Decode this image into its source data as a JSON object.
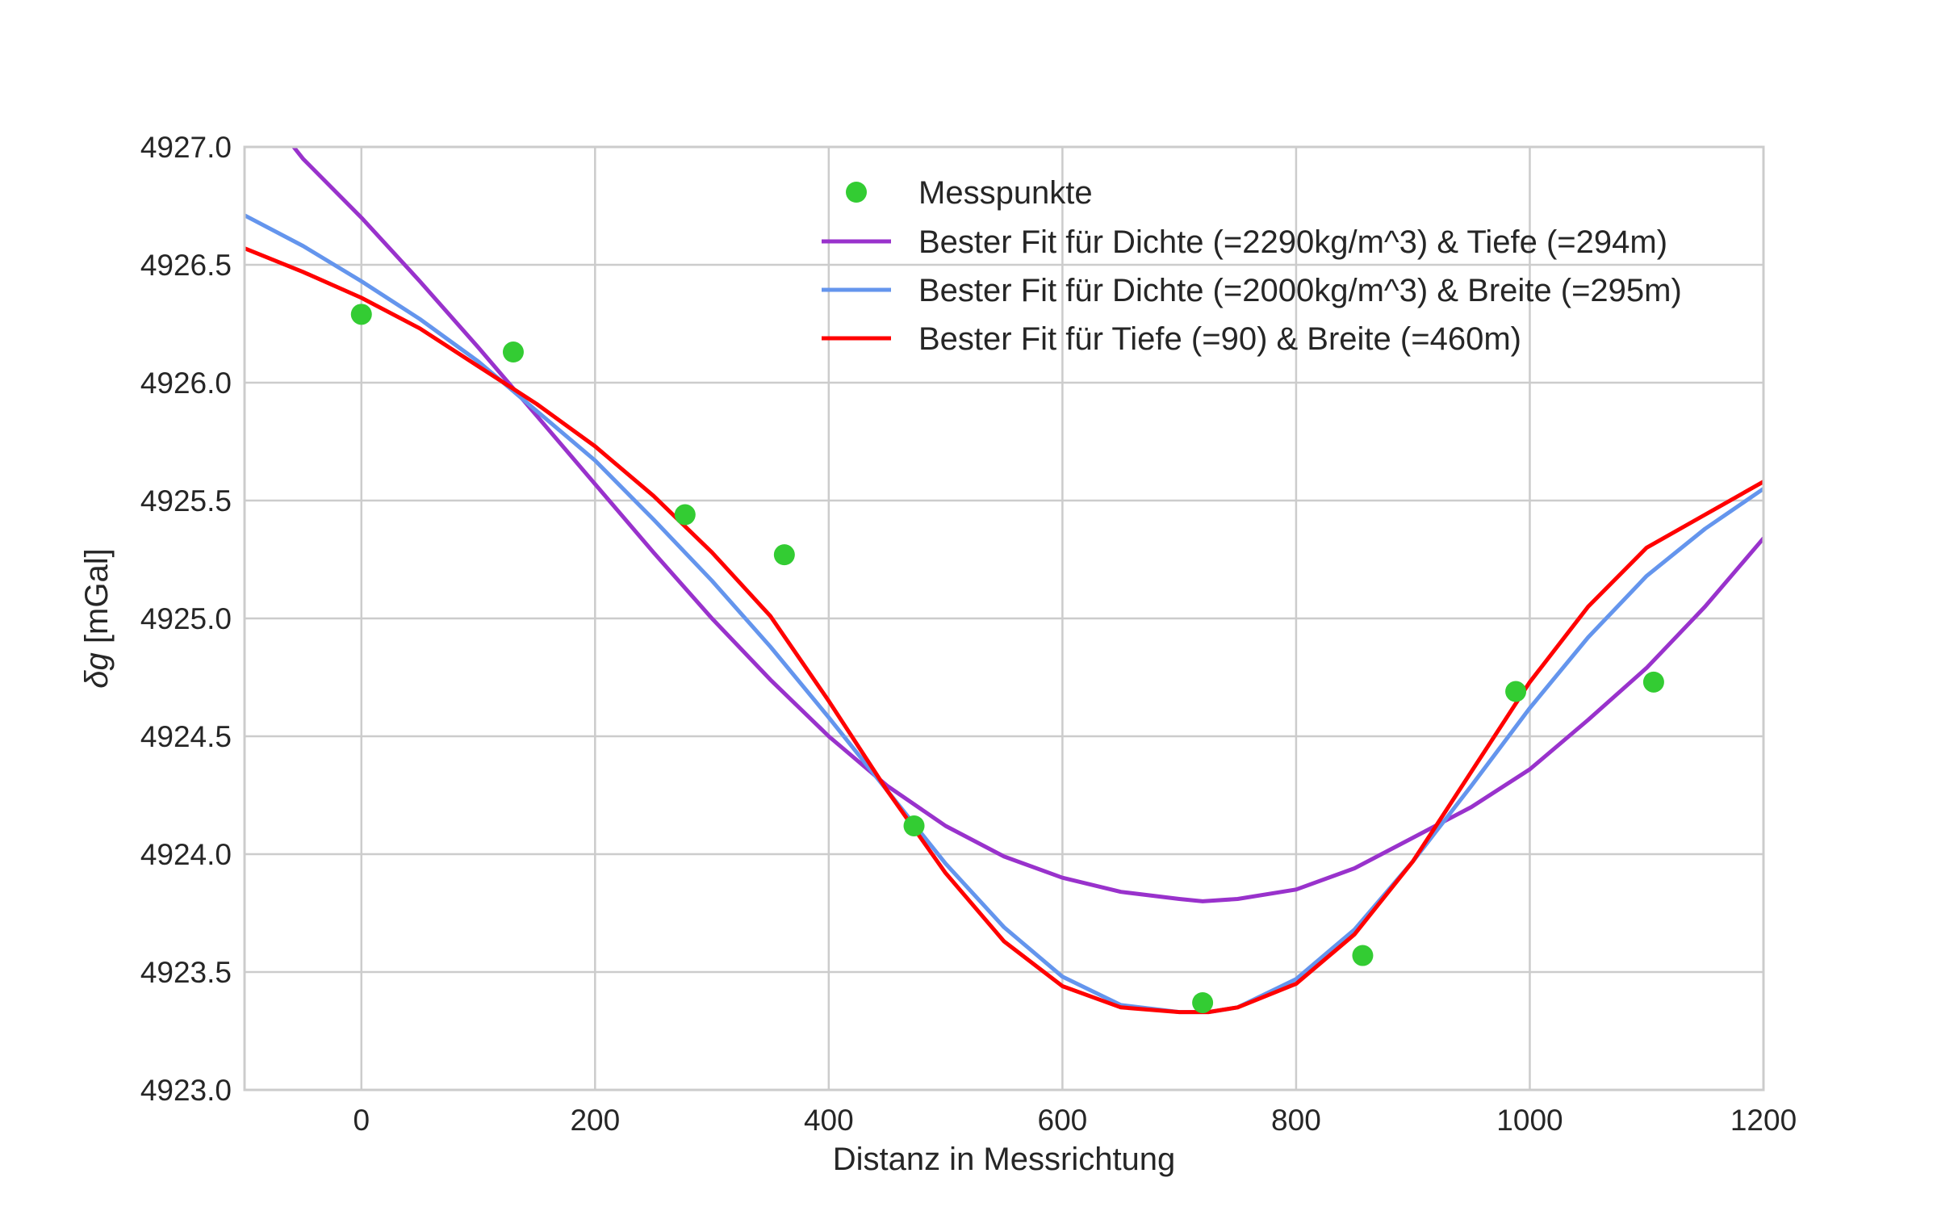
{
  "chart_data": {
    "type": "line",
    "xlabel": "Distanz in Messrichtung",
    "ylabel_italic": "δg",
    "ylabel_unit": " [mGal]",
    "xlim": [
      -100,
      1200
    ],
    "ylim": [
      4923.0,
      4927.0
    ],
    "xticks": [
      0,
      200,
      400,
      600,
      800,
      1000,
      1200
    ],
    "yticks": [
      4923.0,
      4923.5,
      4924.0,
      4924.5,
      4925.0,
      4925.5,
      4926.0,
      4926.5,
      4927.0
    ],
    "grid": true,
    "legend_position": "top-center",
    "points": {
      "name": "Messpunkte",
      "color": "#33cc33",
      "x": [
        0,
        130,
        277,
        362,
        473,
        720,
        857,
        988,
        1106
      ],
      "y": [
        4926.29,
        4926.13,
        4925.44,
        4925.27,
        4924.12,
        4923.37,
        4923.57,
        4924.69,
        4924.73
      ]
    },
    "series": [
      {
        "name": "Bester Fit für Dichte (=2290kg/m^3) & Tiefe (=294m)",
        "color": "#9932cc",
        "x": [
          -58,
          -50,
          0,
          50,
          100,
          150,
          200,
          250,
          300,
          350,
          400,
          450,
          500,
          550,
          600,
          650,
          700,
          720,
          750,
          800,
          850,
          900,
          950,
          1000,
          1050,
          1100,
          1150,
          1200
        ],
        "y": [
          4927.0,
          4926.95,
          4926.7,
          4926.43,
          4926.15,
          4925.86,
          4925.57,
          4925.28,
          4925.0,
          4924.74,
          4924.5,
          4924.29,
          4924.12,
          4923.99,
          4923.9,
          4923.84,
          4923.81,
          4923.8,
          4923.81,
          4923.85,
          4923.94,
          4924.07,
          4924.2,
          4924.36,
          4924.57,
          4924.79,
          4925.05,
          4925.34
        ]
      },
      {
        "name": "Bester Fit für Dichte (=2000kg/m^3) & Breite (=295m)",
        "color": "#6495ed",
        "x": [
          -100,
          -50,
          0,
          50,
          100,
          150,
          200,
          250,
          300,
          350,
          400,
          450,
          500,
          550,
          600,
          650,
          700,
          725,
          750,
          800,
          850,
          900,
          950,
          1000,
          1050,
          1100,
          1150,
          1200
        ],
        "y": [
          4926.71,
          4926.58,
          4926.43,
          4926.27,
          4926.09,
          4925.88,
          4925.67,
          4925.42,
          4925.16,
          4924.88,
          4924.58,
          4924.27,
          4923.96,
          4923.69,
          4923.48,
          4923.36,
          4923.33,
          4923.33,
          4923.35,
          4923.47,
          4923.68,
          4923.97,
          4924.29,
          4924.62,
          4924.92,
          4925.18,
          4925.38,
          4925.55
        ]
      },
      {
        "name": "Bester Fit für Tiefe (=90) & Breite (=460m)",
        "color": "#ff0000",
        "x": [
          -100,
          -50,
          0,
          50,
          100,
          150,
          200,
          250,
          300,
          350,
          400,
          450,
          500,
          550,
          600,
          650,
          700,
          725,
          750,
          800,
          850,
          900,
          950,
          1000,
          1050,
          1100,
          1150,
          1200
        ],
        "y": [
          4926.57,
          4926.47,
          4926.36,
          4926.23,
          4926.07,
          4925.91,
          4925.73,
          4925.52,
          4925.28,
          4925.01,
          4924.65,
          4924.27,
          4923.92,
          4923.63,
          4923.44,
          4923.35,
          4923.33,
          4923.33,
          4923.35,
          4923.45,
          4923.66,
          4923.97,
          4924.35,
          4924.73,
          4925.05,
          4925.3,
          4925.44,
          4925.58
        ]
      }
    ]
  }
}
